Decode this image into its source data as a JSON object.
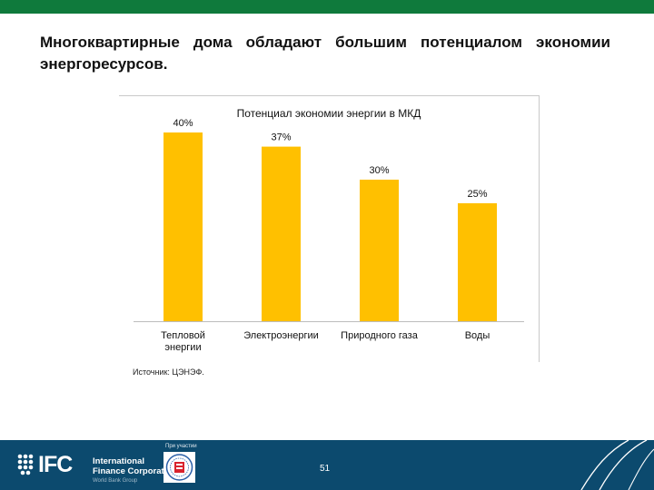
{
  "slide": {
    "title": "Многоквартирные дома обладают большим потенциалом экономии энергоресурсов.",
    "source": "Источник: ЦЭНЭФ.",
    "page_number": "51",
    "partner_label": "При участии"
  },
  "footer": {
    "org_letters": "IFC",
    "org_name_line1": "International",
    "org_name_line2": "Finance Corporation",
    "org_name_line3": "World Bank Group"
  },
  "colors": {
    "bar": "#FFC000",
    "top_bar": "#0f7a3c",
    "footer": "#0c4a6e"
  },
  "chart_data": {
    "type": "bar",
    "title": "Потенциал экономии энергии в МКД",
    "categories": [
      "Тепловой энергии",
      "Электроэнергии",
      "Природного газа",
      "Воды"
    ],
    "category_lines": [
      [
        "Тепловой",
        "энергии"
      ],
      [
        "Электроэнергии"
      ],
      [
        "Природного газа"
      ],
      [
        "Воды"
      ]
    ],
    "values": [
      40,
      37,
      30,
      25
    ],
    "value_labels": [
      "40%",
      "37%",
      "30%",
      "25%"
    ],
    "ylim": [
      0,
      45
    ],
    "xlabel": "",
    "ylabel": "",
    "grid": false,
    "legend": "none"
  }
}
